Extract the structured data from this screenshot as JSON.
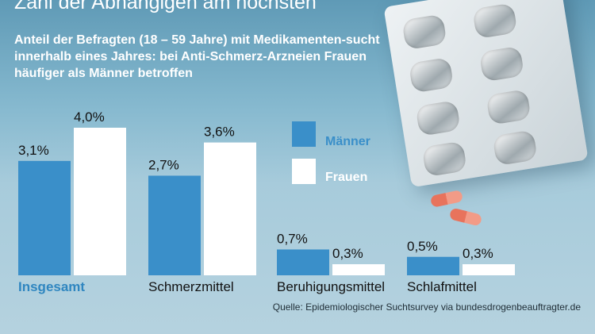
{
  "title": "Zahl der Abhängigen am höchsten",
  "subtitle": "Anteil der Befragten (18 – 59 Jahre) mit Medikamenten-sucht innerhalb eines Jahres: bei Anti-Schmerz-Arzneien Frauen häufiger als Männer betroffen",
  "source": "Quelle: Epidemiologischer Suchtsurvey via bundesdrogenbeauftragter.de",
  "colors": {
    "maenner": "#3a8fc9",
    "frauen": "#ffffff",
    "highlight_label": "#2f86c0"
  },
  "chart_data": {
    "type": "bar",
    "categories": [
      "Insgesamt",
      "Schmerzmittel",
      "Beruhigungsmittel",
      "Schlafmittel"
    ],
    "series": [
      {
        "name": "Männer",
        "values": [
          3.1,
          2.7,
          0.7,
          0.5
        ],
        "labels": [
          "3,1%",
          "2,7%",
          "0,7%",
          "0,5%"
        ]
      },
      {
        "name": "Frauen",
        "values": [
          4.0,
          3.6,
          0.3,
          0.3
        ],
        "labels": [
          "4,0%",
          "3,6%",
          "0,3%",
          "0,3%"
        ]
      }
    ],
    "ylim": [
      0,
      4.5
    ],
    "grid": false,
    "legend": "right"
  }
}
